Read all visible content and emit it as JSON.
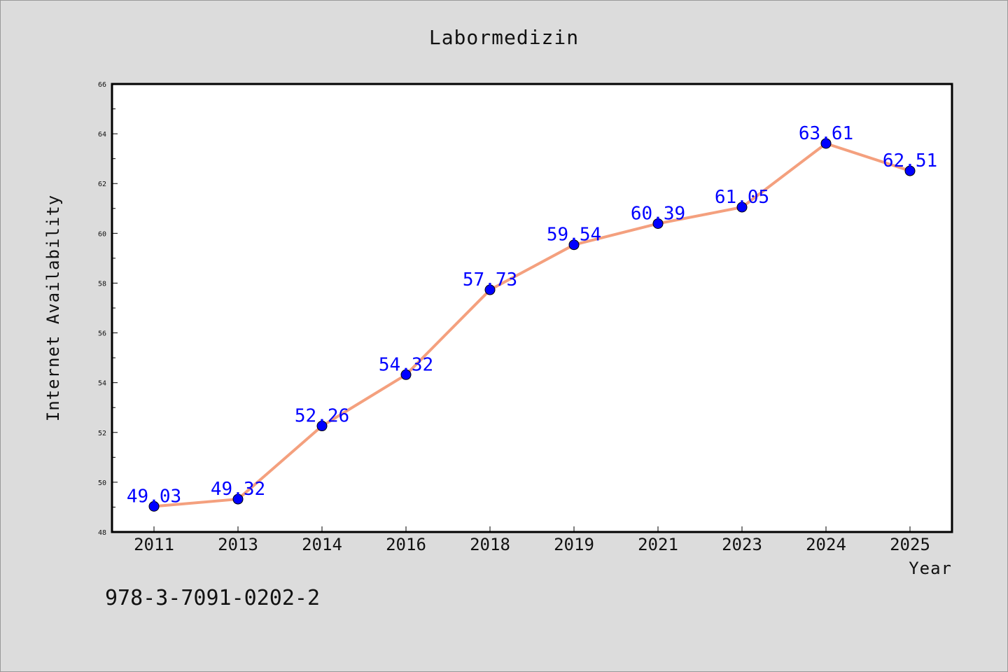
{
  "chart_data": {
    "type": "line",
    "title": "Labormedizin",
    "xlabel": "Year",
    "ylabel": "Internet Availability",
    "categories": [
      "2011",
      "2013",
      "2014",
      "2016",
      "2018",
      "2019",
      "2021",
      "2023",
      "2024",
      "2025"
    ],
    "series": [
      {
        "values": [
          49.03,
          49.32,
          52.26,
          54.32,
          57.73,
          59.54,
          60.39,
          61.05,
          63.61,
          62.51
        ],
        "data_labels": [
          "49.03",
          "49.32",
          "52.26",
          "54.32",
          "57.73",
          "59.54",
          "60.39",
          "61.05",
          "63.61",
          "62.51"
        ],
        "line_color": "#f4a07e",
        "marker_color": "#0000ff"
      }
    ],
    "ylim": [
      48,
      66
    ],
    "yticks": [
      "48",
      "50",
      "52",
      "54",
      "56",
      "58",
      "60",
      "62",
      "64",
      "66"
    ],
    "grid": false,
    "legend": "none"
  },
  "footer": {
    "isbn": "978-3-7091-0202-2"
  },
  "colors": {
    "background": "#dcdcdc",
    "plot_background": "#ffffff",
    "line": "#f4a07e",
    "marker": "#0000ff",
    "data_label": "#0000ff"
  }
}
